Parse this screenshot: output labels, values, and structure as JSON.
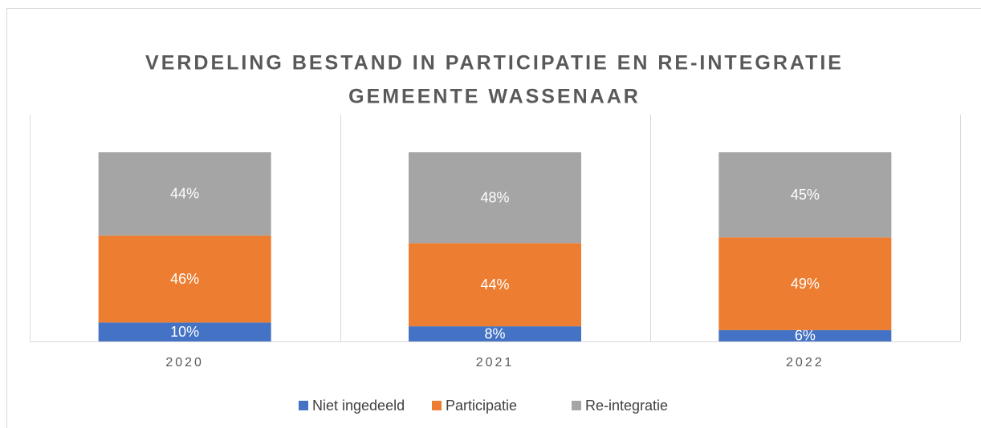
{
  "chart_data": {
    "type": "stacked_bar",
    "title": [
      "VERDELING BESTAND IN PARTICIPATIE EN RE-INTEGRATIE",
      "GEMEENTE WASSENAAR"
    ],
    "categories": [
      "2020",
      "2021",
      "2022"
    ],
    "series": [
      {
        "name": "Niet ingedeeld",
        "color": "#4472c4",
        "values": [
          10,
          8,
          6
        ],
        "value_labels": [
          "10%",
          "8%",
          "6%"
        ]
      },
      {
        "name": "Participatie",
        "color": "#ed7d31",
        "values": [
          46,
          44,
          49
        ],
        "value_labels": [
          "46%",
          "44%",
          "49%"
        ]
      },
      {
        "name": "Re-integratie",
        "color": "#a5a5a5",
        "values": [
          44,
          48,
          45
        ],
        "value_labels": [
          "44%",
          "48%",
          "45%"
        ]
      }
    ],
    "legend": "bottom"
  }
}
